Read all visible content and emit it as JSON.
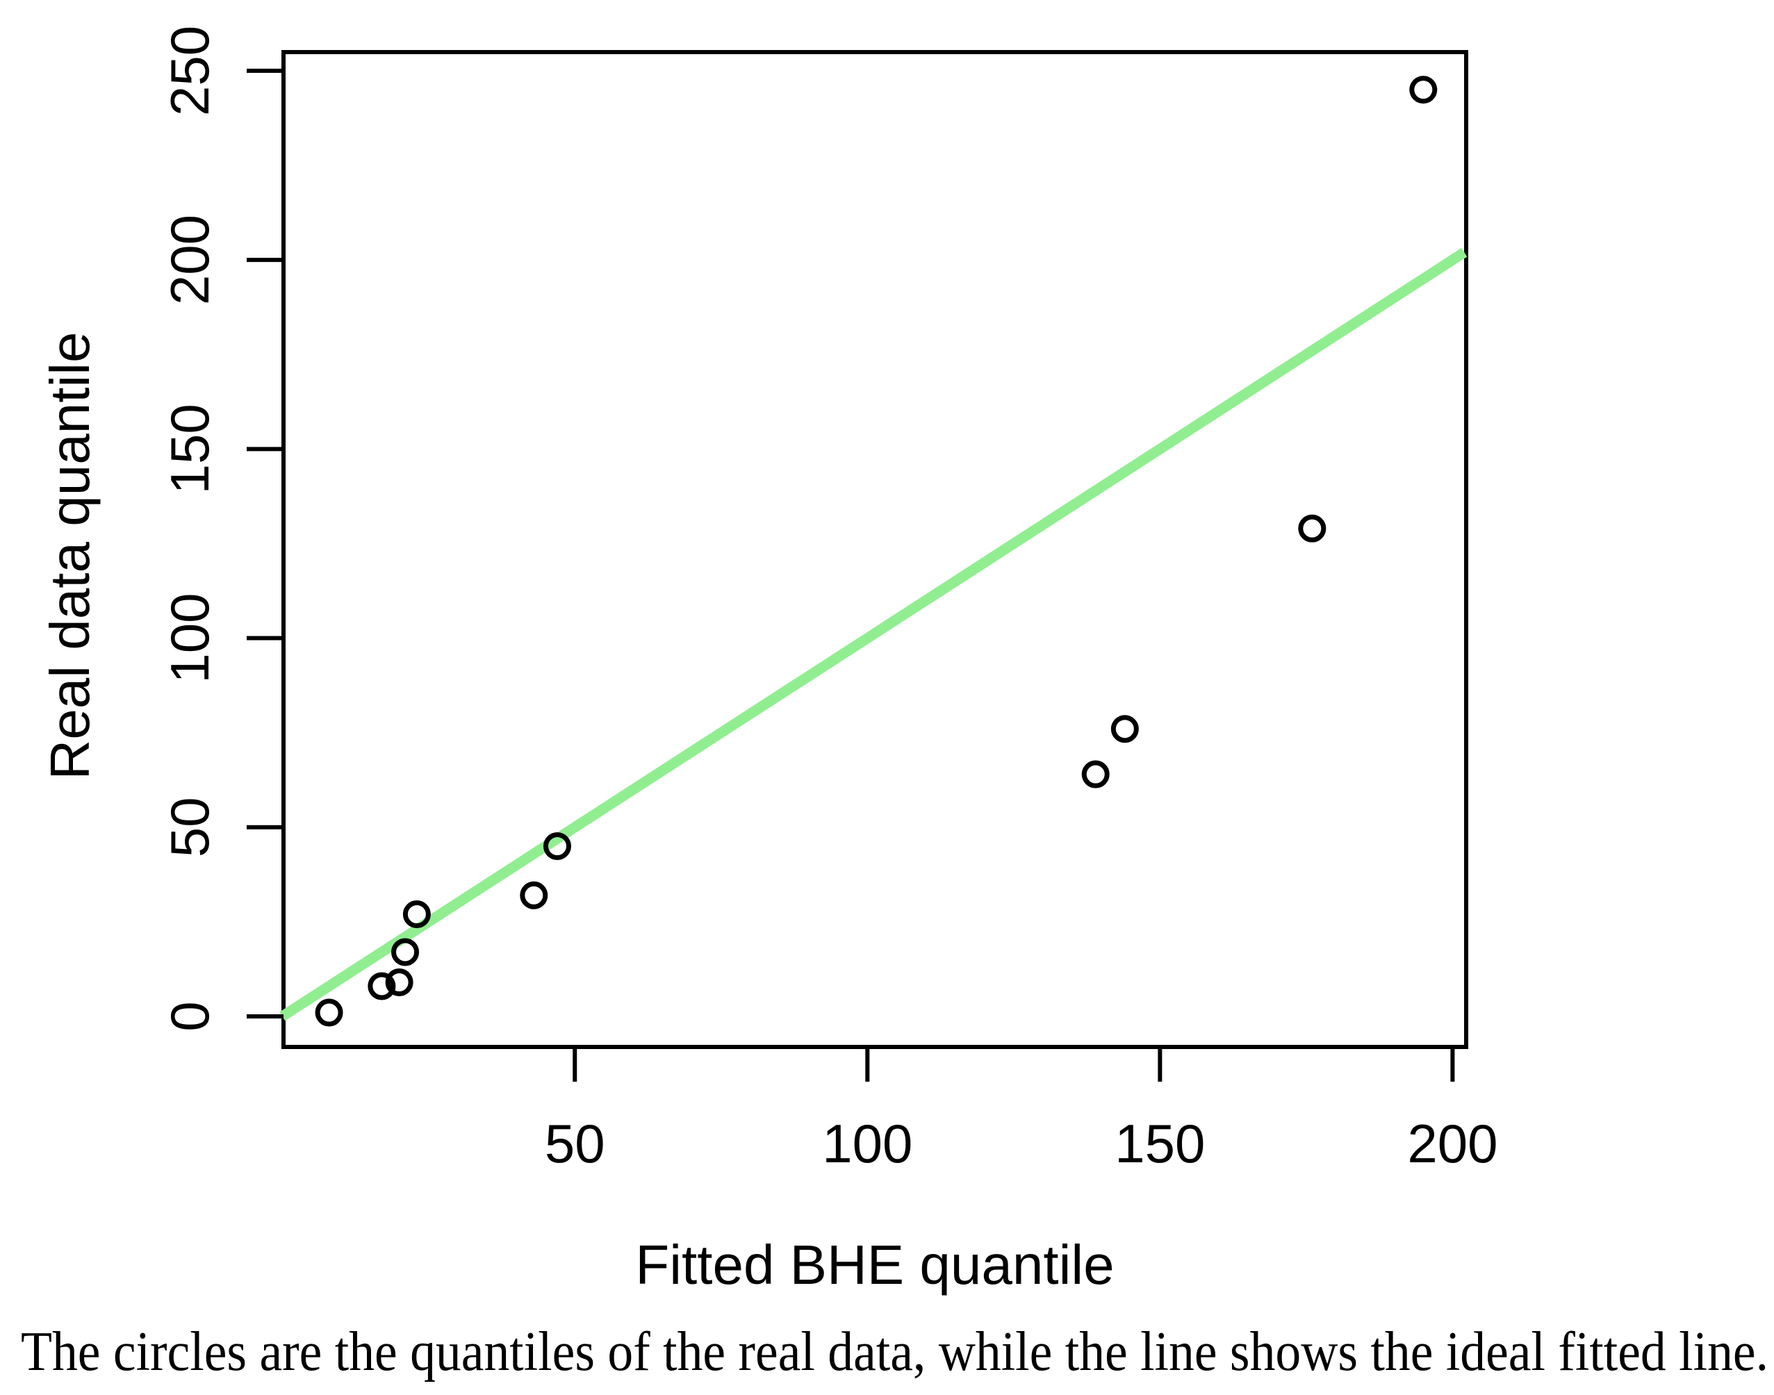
{
  "caption": "The circles are the quantiles of the real data, while the line shows the ideal fitted line.",
  "colors": {
    "ideal_line": "#90EE90",
    "marker": "#000000",
    "axis": "#000000",
    "background": "#ffffff"
  },
  "chart_data": {
    "type": "scatter",
    "title": "",
    "xlabel": "Fitted BHE quantile",
    "ylabel": "Real data quantile",
    "x_ticks": [
      50,
      100,
      150,
      200
    ],
    "y_ticks": [
      0,
      50,
      100,
      150,
      200,
      250
    ],
    "xlim": [
      0,
      202
    ],
    "ylim": [
      -8,
      255
    ],
    "grid": false,
    "legend": "none",
    "series": [
      {
        "name": "real data quantiles",
        "marker": "open-circle",
        "points": [
          [
            8,
            1
          ],
          [
            17,
            8
          ],
          [
            20,
            9
          ],
          [
            21,
            17
          ],
          [
            23,
            27
          ],
          [
            43,
            32
          ],
          [
            47,
            45
          ],
          [
            139,
            64
          ],
          [
            144,
            76
          ],
          [
            176,
            129
          ],
          [
            195,
            245
          ]
        ]
      }
    ],
    "ideal_line": {
      "x1": 0,
      "y1": 0,
      "x2": 202,
      "y2": 202
    }
  }
}
